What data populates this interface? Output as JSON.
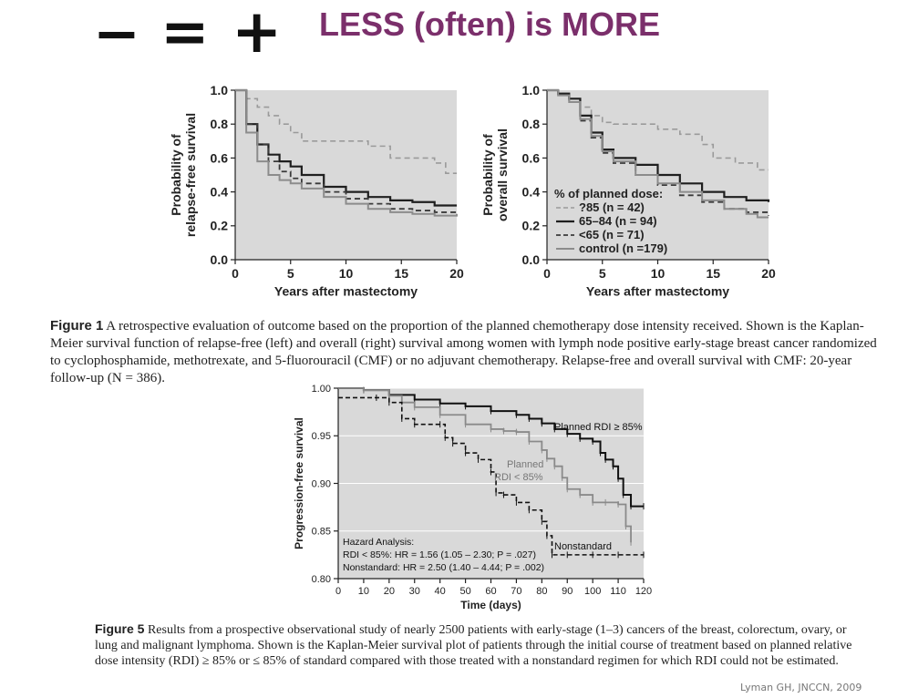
{
  "slide": {
    "symbols": {
      "minus": "−",
      "equals": "=",
      "plus": "+"
    },
    "headline": "LESS (often) is MORE",
    "source": "Lyman GH, JNCCN, 2009",
    "colors": {
      "headline": "#7b2f6b",
      "plot_bg": "#d9d9d9"
    }
  },
  "figure1": {
    "label": "Figure 1",
    "text": " A retrospective evaluation of outcome based on the proportion of the planned chemotherapy dose intensity received. Shown is the Kaplan-Meier survival function of relapse-free (left) and overall (right) survival among women with lymph node positive early-stage breast cancer randomized to cyclophosphamide, methotrexate, and 5-fluorouracil (CMF) or no adjuvant chemotherapy. Relapse-free and overall survival with CMF: 20-year follow-up (N = 386)."
  },
  "figure5": {
    "label": "Figure 5",
    "text": " Results from a prospective observational study of nearly 2500 patients with early-stage (1–3) cancers of the breast, colorectum, ovary, or lung and malignant lymphoma. Shown is the Kaplan-Meier survival plot of patients through the initial course of treatment based on planned relative dose intensity (RDI) ≥ 85% or ≤ 85% of standard compared with those treated with a nonstandard regimen for which RDI could not be estimated."
  },
  "chart_data": [
    {
      "type": "line",
      "xlabel": "Years after mastectomy",
      "ylabel": "Probability of relapse-free survival",
      "xlim": [
        0,
        20
      ],
      "ylim": [
        0,
        1
      ],
      "xticks": [
        "0",
        "5",
        "10",
        "15",
        "20"
      ],
      "yticks": [
        "0.0",
        "0.2",
        "0.4",
        "0.6",
        "0.8",
        "1.0"
      ],
      "series": [
        {
          "style": "dash-light",
          "x": [
            0,
            1,
            2,
            3,
            4,
            5,
            6,
            8,
            10,
            12,
            14,
            16,
            18,
            19,
            20
          ],
          "y": [
            1.0,
            0.95,
            0.9,
            0.85,
            0.8,
            0.75,
            0.7,
            0.7,
            0.7,
            0.67,
            0.6,
            0.6,
            0.57,
            0.51,
            0.51
          ]
        },
        {
          "style": "solid-dark",
          "x": [
            0,
            1,
            2,
            3,
            4,
            5,
            6,
            8,
            10,
            12,
            14,
            16,
            18,
            20
          ],
          "y": [
            1.0,
            0.8,
            0.68,
            0.62,
            0.58,
            0.55,
            0.5,
            0.43,
            0.4,
            0.37,
            0.35,
            0.34,
            0.32,
            0.32
          ]
        },
        {
          "style": "dash-dark",
          "x": [
            0,
            1,
            2,
            3,
            4,
            5,
            6,
            8,
            10,
            12,
            14,
            16,
            18,
            20
          ],
          "y": [
            1.0,
            0.8,
            0.68,
            0.58,
            0.52,
            0.48,
            0.45,
            0.4,
            0.36,
            0.33,
            0.3,
            0.29,
            0.28,
            0.29
          ]
        },
        {
          "style": "solid-light",
          "x": [
            0,
            1,
            2,
            3,
            4,
            5,
            6,
            8,
            10,
            12,
            14,
            16,
            18,
            20
          ],
          "y": [
            1.0,
            0.75,
            0.58,
            0.5,
            0.47,
            0.45,
            0.42,
            0.37,
            0.33,
            0.3,
            0.28,
            0.27,
            0.26,
            0.27
          ]
        }
      ]
    },
    {
      "type": "line",
      "xlabel": "Years after mastectomy",
      "ylabel": "Probability of overall survival",
      "xlim": [
        0,
        20
      ],
      "ylim": [
        0,
        1
      ],
      "xticks": [
        "0",
        "5",
        "10",
        "15",
        "20"
      ],
      "yticks": [
        "0.0",
        "0.2",
        "0.4",
        "0.6",
        "0.8",
        "1.0"
      ],
      "legend_title": "% of planned dose:",
      "legend": [
        {
          "style": "dash-light",
          "label": "?85 (n = 42)"
        },
        {
          "style": "solid-dark",
          "label": "65–84 (n = 94)"
        },
        {
          "style": "dash-dark",
          "label": "<65 (n = 71)"
        },
        {
          "style": "solid-light",
          "label": "control (n =179)"
        }
      ],
      "series": [
        {
          "style": "dash-light",
          "x": [
            0,
            1,
            2,
            3,
            4,
            5,
            6,
            8,
            10,
            12,
            14,
            15,
            17,
            19,
            20
          ],
          "y": [
            1.0,
            0.98,
            0.95,
            0.9,
            0.85,
            0.81,
            0.8,
            0.8,
            0.77,
            0.74,
            0.68,
            0.6,
            0.57,
            0.53,
            0.53
          ]
        },
        {
          "style": "solid-dark",
          "x": [
            0,
            1,
            2,
            3,
            4,
            5,
            6,
            8,
            10,
            12,
            14,
            16,
            18,
            20
          ],
          "y": [
            1.0,
            0.98,
            0.95,
            0.85,
            0.75,
            0.65,
            0.6,
            0.56,
            0.5,
            0.45,
            0.4,
            0.37,
            0.35,
            0.34
          ]
        },
        {
          "style": "dash-dark",
          "x": [
            0,
            1,
            2,
            3,
            4,
            5,
            6,
            8,
            10,
            12,
            14,
            16,
            18,
            20
          ],
          "y": [
            1.0,
            0.97,
            0.93,
            0.82,
            0.72,
            0.63,
            0.57,
            0.5,
            0.44,
            0.38,
            0.34,
            0.3,
            0.28,
            0.26
          ]
        },
        {
          "style": "solid-light",
          "x": [
            0,
            1,
            2,
            3,
            4,
            5,
            6,
            8,
            10,
            12,
            14,
            16,
            18,
            19,
            20
          ],
          "y": [
            1.0,
            0.97,
            0.93,
            0.83,
            0.73,
            0.64,
            0.58,
            0.5,
            0.45,
            0.4,
            0.35,
            0.3,
            0.27,
            0.25,
            0.25
          ]
        }
      ]
    },
    {
      "type": "line",
      "xlabel": "Time (days)",
      "ylabel": "Progression-free survival",
      "xlim": [
        0,
        120
      ],
      "ylim": [
        0.8,
        1.0
      ],
      "xticks": [
        "0",
        "10",
        "20",
        "30",
        "40",
        "50",
        "60",
        "70",
        "80",
        "90",
        "100",
        "110",
        "120"
      ],
      "yticks": [
        "0.80",
        "0.85",
        "0.90",
        "0.95",
        "1.00"
      ],
      "series_labels": [
        {
          "text": "Planned RDI ≥ 85%"
        },
        {
          "lines": [
            "Planned",
            "RDI < 85%"
          ]
        },
        {
          "text": "Nonstandard"
        }
      ],
      "annotation": [
        "Hazard Analysis:",
        "RDI < 85%: HR = 1.56 (1.05 – 2.30; P = .027)",
        "Nonstandard: HR = 2.50 (1.40 – 4.44; P = .002)"
      ],
      "series": [
        {
          "style": "rdi-high",
          "x": [
            0,
            10,
            20,
            30,
            40,
            50,
            60,
            70,
            75,
            80,
            85,
            90,
            95,
            100,
            103,
            105,
            108,
            110,
            112,
            115,
            120
          ],
          "y": [
            1.0,
            0.998,
            0.993,
            0.988,
            0.984,
            0.981,
            0.976,
            0.972,
            0.968,
            0.963,
            0.957,
            0.952,
            0.947,
            0.944,
            0.932,
            0.925,
            0.918,
            0.905,
            0.888,
            0.876,
            0.876
          ]
        },
        {
          "style": "rdi-low",
          "x": [
            0,
            10,
            20,
            25,
            30,
            40,
            50,
            60,
            65,
            70,
            75,
            80,
            82,
            85,
            88,
            90,
            95,
            100,
            105,
            110,
            113,
            115
          ],
          "y": [
            1.0,
            0.998,
            0.992,
            0.985,
            0.98,
            0.972,
            0.962,
            0.957,
            0.955,
            0.954,
            0.944,
            0.935,
            0.926,
            0.918,
            0.906,
            0.894,
            0.888,
            0.88,
            0.88,
            0.878,
            0.855,
            0.838
          ]
        },
        {
          "style": "nonstandard",
          "x": [
            0,
            15,
            20,
            25,
            30,
            40,
            42,
            45,
            50,
            55,
            60,
            62,
            65,
            70,
            75,
            80,
            82,
            84,
            90,
            100,
            110,
            120
          ],
          "y": [
            0.99,
            0.99,
            0.985,
            0.968,
            0.962,
            0.962,
            0.948,
            0.942,
            0.932,
            0.925,
            0.912,
            0.89,
            0.888,
            0.88,
            0.872,
            0.86,
            0.845,
            0.825,
            0.825,
            0.825,
            0.825,
            0.825
          ]
        }
      ]
    }
  ]
}
